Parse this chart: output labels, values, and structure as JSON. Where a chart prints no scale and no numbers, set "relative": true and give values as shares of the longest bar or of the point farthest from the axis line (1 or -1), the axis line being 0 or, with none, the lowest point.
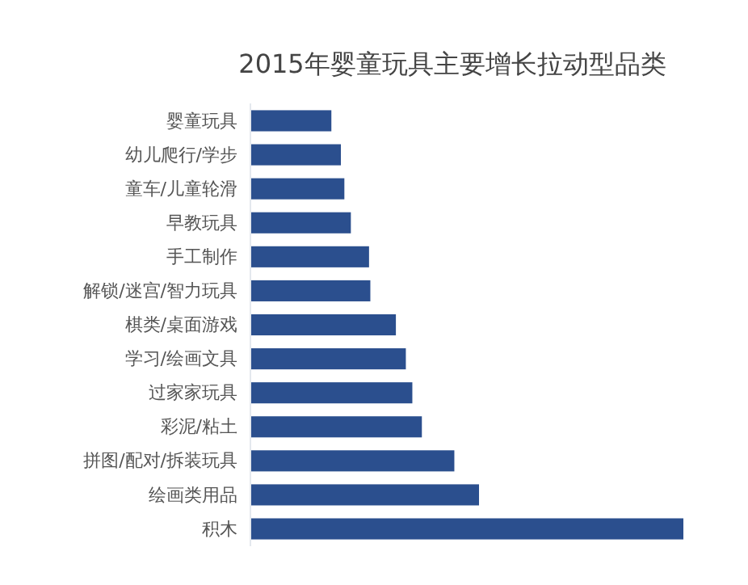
{
  "chart_data": {
    "type": "bar",
    "orientation": "horizontal",
    "relative": true,
    "title": "2015年婴童玩具主要增长拉动型品类",
    "categories": [
      "婴童玩具",
      "幼儿爬行/学步",
      "童车/儿童轮滑",
      "早教玩具",
      "手工制作",
      "解锁/迷宫/智力玩具",
      "棋类/桌面游戏",
      "学习/绘画文具",
      "过家家玩具",
      "彩泥/粘土",
      "拼图/配对/拆装玩具",
      "绘画类用品",
      "积木"
    ],
    "values": [
      0.187,
      0.209,
      0.217,
      0.232,
      0.274,
      0.277,
      0.336,
      0.359,
      0.374,
      0.396,
      0.471,
      0.528,
      1
    ],
    "color": "#2b4f8e"
  }
}
